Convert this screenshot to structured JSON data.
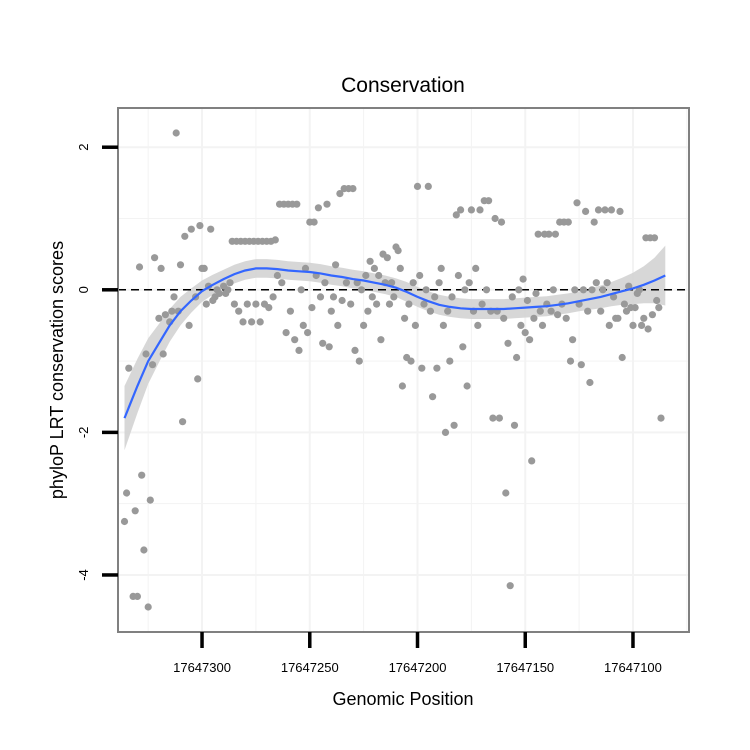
{
  "chart_data": {
    "type": "scatter",
    "title": "Conservation",
    "xlabel": "Genomic Position",
    "ylabel": "phyloP LRT conservation scores",
    "x_reversed": true,
    "xlim": [
      17647339,
      17647074
    ],
    "ylim": [
      -4.8,
      2.55
    ],
    "x_ticks": [
      17647300,
      17647250,
      17647200,
      17647150,
      17647100
    ],
    "x_tick_labels": [
      "17647300",
      "17647250",
      "17647200",
      "17647150",
      "17647100"
    ],
    "y_ticks": [
      2,
      0,
      -2,
      -4
    ],
    "y_tick_labels": [
      "2",
      "0",
      "-2",
      "-4"
    ],
    "reference_line": {
      "y": 0,
      "style": "dashed"
    },
    "grid": true,
    "colors": {
      "points": "#999999",
      "smooth_line": "#3366ff",
      "confidence_band": "#d3d3d3",
      "panel_border": "#808080",
      "gridline": "#f3f3f3"
    },
    "points": [
      [
        17647336,
        -3.25
      ],
      [
        17647335,
        -2.85
      ],
      [
        17647334,
        -1.1
      ],
      [
        17647332,
        -4.3
      ],
      [
        17647331,
        -3.1
      ],
      [
        17647330,
        -4.3
      ],
      [
        17647329,
        0.32
      ],
      [
        17647328,
        -2.6
      ],
      [
        17647327,
        -3.65
      ],
      [
        17647326,
        -0.9
      ],
      [
        17647325,
        -4.45
      ],
      [
        17647324,
        -2.95
      ],
      [
        17647323,
        -1.05
      ],
      [
        17647322,
        0.45
      ],
      [
        17647320,
        -0.4
      ],
      [
        17647319,
        0.3
      ],
      [
        17647318,
        -0.9
      ],
      [
        17647317,
        -0.35
      ],
      [
        17647315,
        -0.45
      ],
      [
        17647314,
        -0.3
      ],
      [
        17647313,
        -0.1
      ],
      [
        17647312,
        2.2
      ],
      [
        17647311,
        -0.3
      ],
      [
        17647310,
        0.35
      ],
      [
        17647309,
        -1.85
      ],
      [
        17647308,
        0.75
      ],
      [
        17647306,
        -0.5
      ],
      [
        17647305,
        0.85
      ],
      [
        17647303,
        -0.1
      ],
      [
        17647302,
        -1.25
      ],
      [
        17647301,
        0.9
      ],
      [
        17647300,
        0.3
      ],
      [
        17647299,
        0.3
      ],
      [
        17647298,
        -0.2
      ],
      [
        17647297,
        0.05
      ],
      [
        17647296,
        0.85
      ],
      [
        17647295,
        -0.15
      ],
      [
        17647294,
        -0.1
      ],
      [
        17647293,
        0.0
      ],
      [
        17647292,
        -0.05
      ],
      [
        17647290,
        0.05
      ],
      [
        17647289,
        -0.05
      ],
      [
        17647288,
        0.0
      ],
      [
        17647287,
        0.1
      ],
      [
        17647286,
        0.68
      ],
      [
        17647285,
        -0.2
      ],
      [
        17647284,
        0.68
      ],
      [
        17647283,
        -0.3
      ],
      [
        17647282,
        0.68
      ],
      [
        17647281,
        -0.45
      ],
      [
        17647280,
        0.68
      ],
      [
        17647279,
        -0.2
      ],
      [
        17647278,
        0.68
      ],
      [
        17647277,
        -0.45
      ],
      [
        17647276,
        0.68
      ],
      [
        17647275,
        -0.2
      ],
      [
        17647274,
        0.68
      ],
      [
        17647273,
        -0.45
      ],
      [
        17647272,
        0.68
      ],
      [
        17647271,
        -0.2
      ],
      [
        17647270,
        0.68
      ],
      [
        17647269,
        -0.25
      ],
      [
        17647268,
        0.68
      ],
      [
        17647267,
        -0.1
      ],
      [
        17647266,
        0.7
      ],
      [
        17647265,
        0.2
      ],
      [
        17647264,
        1.2
      ],
      [
        17647263,
        0.1
      ],
      [
        17647262,
        1.2
      ],
      [
        17647261,
        -0.6
      ],
      [
        17647260,
        1.2
      ],
      [
        17647259,
        -0.3
      ],
      [
        17647258,
        1.2
      ],
      [
        17647257,
        -0.7
      ],
      [
        17647256,
        1.2
      ],
      [
        17647255,
        -0.85
      ],
      [
        17647254,
        0.0
      ],
      [
        17647253,
        -0.5
      ],
      [
        17647252,
        0.3
      ],
      [
        17647251,
        -0.6
      ],
      [
        17647250,
        0.95
      ],
      [
        17647249,
        -0.25
      ],
      [
        17647248,
        0.95
      ],
      [
        17647247,
        0.2
      ],
      [
        17647246,
        1.15
      ],
      [
        17647245,
        -0.1
      ],
      [
        17647244,
        -0.75
      ],
      [
        17647243,
        0.1
      ],
      [
        17647242,
        1.2
      ],
      [
        17647241,
        -0.8
      ],
      [
        17647240,
        -0.3
      ],
      [
        17647239,
        -0.1
      ],
      [
        17647238,
        0.35
      ],
      [
        17647237,
        -0.5
      ],
      [
        17647236,
        1.35
      ],
      [
        17647235,
        -0.15
      ],
      [
        17647234,
        1.42
      ],
      [
        17647233,
        0.1
      ],
      [
        17647232,
        1.42
      ],
      [
        17647231,
        -0.2
      ],
      [
        17647230,
        1.42
      ],
      [
        17647229,
        -0.85
      ],
      [
        17647228,
        0.1
      ],
      [
        17647227,
        -1.0
      ],
      [
        17647226,
        0.0
      ],
      [
        17647225,
        -0.5
      ],
      [
        17647224,
        0.2
      ],
      [
        17647223,
        -0.3
      ],
      [
        17647222,
        0.4
      ],
      [
        17647221,
        -0.1
      ],
      [
        17647220,
        0.3
      ],
      [
        17647219,
        -0.2
      ],
      [
        17647218,
        0.2
      ],
      [
        17647217,
        -0.7
      ],
      [
        17647216,
        0.5
      ],
      [
        17647215,
        0.1
      ],
      [
        17647214,
        0.45
      ],
      [
        17647213,
        -0.2
      ],
      [
        17647212,
        0.1
      ],
      [
        17647211,
        -0.1
      ],
      [
        17647210,
        0.6
      ],
      [
        17647209,
        0.55
      ],
      [
        17647208,
        0.3
      ],
      [
        17647207,
        -1.35
      ],
      [
        17647206,
        -0.4
      ],
      [
        17647205,
        -0.95
      ],
      [
        17647204,
        -0.2
      ],
      [
        17647203,
        -1.0
      ],
      [
        17647202,
        0.1
      ],
      [
        17647201,
        -0.5
      ],
      [
        17647200,
        1.45
      ],
      [
        17647199,
        0.2
      ],
      [
        17647198,
        -1.1
      ],
      [
        17647197,
        -0.2
      ],
      [
        17647196,
        0.0
      ],
      [
        17647195,
        1.45
      ],
      [
        17647194,
        -0.3
      ],
      [
        17647193,
        -1.5
      ],
      [
        17647192,
        -0.1
      ],
      [
        17647191,
        -1.1
      ],
      [
        17647190,
        0.1
      ],
      [
        17647189,
        0.3
      ],
      [
        17647188,
        -0.5
      ],
      [
        17647187,
        -2.0
      ],
      [
        17647186,
        -0.3
      ],
      [
        17647185,
        -1.0
      ],
      [
        17647184,
        -0.1
      ],
      [
        17647183,
        -1.9
      ],
      [
        17647182,
        1.05
      ],
      [
        17647181,
        0.2
      ],
      [
        17647180,
        1.12
      ],
      [
        17647179,
        -0.8
      ],
      [
        17647178,
        0.0
      ],
      [
        17647177,
        -1.35
      ],
      [
        17647176,
        0.1
      ],
      [
        17647175,
        1.12
      ],
      [
        17647174,
        -0.3
      ],
      [
        17647173,
        0.3
      ],
      [
        17647172,
        -0.5
      ],
      [
        17647171,
        1.12
      ],
      [
        17647170,
        -0.2
      ],
      [
        17647169,
        1.25
      ],
      [
        17647168,
        0.0
      ],
      [
        17647167,
        1.25
      ],
      [
        17647166,
        -0.3
      ],
      [
        17647165,
        -1.8
      ],
      [
        17647164,
        1.0
      ],
      [
        17647163,
        -0.3
      ],
      [
        17647162,
        -1.8
      ],
      [
        17647161,
        0.95
      ],
      [
        17647160,
        -0.4
      ],
      [
        17647159,
        -2.85
      ],
      [
        17647158,
        -0.75
      ],
      [
        17647157,
        -4.15
      ],
      [
        17647156,
        -0.1
      ],
      [
        17647155,
        -1.9
      ],
      [
        17647154,
        -0.95
      ],
      [
        17647153,
        0.0
      ],
      [
        17647152,
        -0.5
      ],
      [
        17647151,
        0.15
      ],
      [
        17647150,
        -0.6
      ],
      [
        17647149,
        -0.15
      ],
      [
        17647148,
        -0.7
      ],
      [
        17647147,
        -2.4
      ],
      [
        17647146,
        -0.4
      ],
      [
        17647145,
        -0.05
      ],
      [
        17647144,
        0.78
      ],
      [
        17647143,
        -0.3
      ],
      [
        17647142,
        -0.5
      ],
      [
        17647141,
        0.78
      ],
      [
        17647140,
        -0.2
      ],
      [
        17647139,
        0.78
      ],
      [
        17647138,
        -0.3
      ],
      [
        17647137,
        0.0
      ],
      [
        17647136,
        0.78
      ],
      [
        17647135,
        -0.35
      ],
      [
        17647134,
        0.95
      ],
      [
        17647133,
        -0.2
      ],
      [
        17647132,
        0.95
      ],
      [
        17647131,
        -0.4
      ],
      [
        17647130,
        0.95
      ],
      [
        17647129,
        -1.0
      ],
      [
        17647128,
        -0.7
      ],
      [
        17647127,
        0.0
      ],
      [
        17647126,
        1.22
      ],
      [
        17647125,
        -0.2
      ],
      [
        17647124,
        -1.05
      ],
      [
        17647123,
        0.0
      ],
      [
        17647122,
        1.1
      ],
      [
        17647121,
        -0.3
      ],
      [
        17647120,
        -1.3
      ],
      [
        17647119,
        0.0
      ],
      [
        17647118,
        0.95
      ],
      [
        17647117,
        0.1
      ],
      [
        17647116,
        1.12
      ],
      [
        17647115,
        -0.3
      ],
      [
        17647114,
        0.0
      ],
      [
        17647113,
        1.12
      ],
      [
        17647112,
        0.1
      ],
      [
        17647111,
        -0.5
      ],
      [
        17647110,
        1.12
      ],
      [
        17647109,
        -0.1
      ],
      [
        17647108,
        -0.4
      ],
      [
        17647107,
        -0.4
      ],
      [
        17647106,
        1.1
      ],
      [
        17647105,
        -0.95
      ],
      [
        17647104,
        -0.2
      ],
      [
        17647103,
        -0.3
      ],
      [
        17647102,
        0.05
      ],
      [
        17647101,
        -0.25
      ],
      [
        17647100,
        -0.5
      ],
      [
        17647099,
        -0.25
      ],
      [
        17647098,
        -0.05
      ],
      [
        17647097,
        0.0
      ],
      [
        17647096,
        -0.5
      ],
      [
        17647095,
        -0.4
      ],
      [
        17647094,
        0.73
      ],
      [
        17647093,
        -0.55
      ],
      [
        17647092,
        0.73
      ],
      [
        17647091,
        -0.35
      ],
      [
        17647090,
        0.73
      ],
      [
        17647089,
        -0.15
      ],
      [
        17647088,
        -0.25
      ],
      [
        17647087,
        -1.8
      ]
    ],
    "smooth_fit": {
      "x": [
        17647336,
        17647330,
        17647325,
        17647320,
        17647315,
        17647310,
        17647305,
        17647300,
        17647295,
        17647290,
        17647285,
        17647280,
        17647275,
        17647270,
        17647265,
        17647260,
        17647255,
        17647250,
        17647245,
        17647240,
        17647235,
        17647230,
        17647225,
        17647220,
        17647215,
        17647210,
        17647205,
        17647200,
        17647195,
        17647190,
        17647185,
        17647180,
        17647175,
        17647170,
        17647165,
        17647160,
        17647155,
        17647150,
        17647145,
        17647140,
        17647135,
        17647130,
        17647125,
        17647120,
        17647115,
        17647110,
        17647105,
        17647100,
        17647095,
        17647090,
        17647085
      ],
      "y": [
        -1.8,
        -1.35,
        -1.0,
        -0.75,
        -0.5,
        -0.3,
        -0.15,
        -0.02,
        0.07,
        0.15,
        0.22,
        0.27,
        0.3,
        0.3,
        0.29,
        0.27,
        0.26,
        0.25,
        0.23,
        0.2,
        0.18,
        0.15,
        0.13,
        0.1,
        0.07,
        0.03,
        -0.03,
        -0.1,
        -0.16,
        -0.21,
        -0.24,
        -0.26,
        -0.27,
        -0.27,
        -0.27,
        -0.27,
        -0.26,
        -0.25,
        -0.24,
        -0.23,
        -0.21,
        -0.19,
        -0.16,
        -0.13,
        -0.1,
        -0.06,
        -0.02,
        0.02,
        0.07,
        0.13,
        0.2
      ],
      "se": [
        0.45,
        0.38,
        0.32,
        0.27,
        0.23,
        0.2,
        0.17,
        0.15,
        0.14,
        0.13,
        0.13,
        0.13,
        0.13,
        0.13,
        0.13,
        0.13,
        0.13,
        0.13,
        0.13,
        0.13,
        0.13,
        0.13,
        0.13,
        0.13,
        0.13,
        0.13,
        0.14,
        0.14,
        0.14,
        0.14,
        0.14,
        0.14,
        0.14,
        0.14,
        0.14,
        0.14,
        0.14,
        0.14,
        0.14,
        0.14,
        0.14,
        0.14,
        0.14,
        0.15,
        0.16,
        0.17,
        0.19,
        0.22,
        0.26,
        0.32,
        0.42
      ]
    }
  }
}
